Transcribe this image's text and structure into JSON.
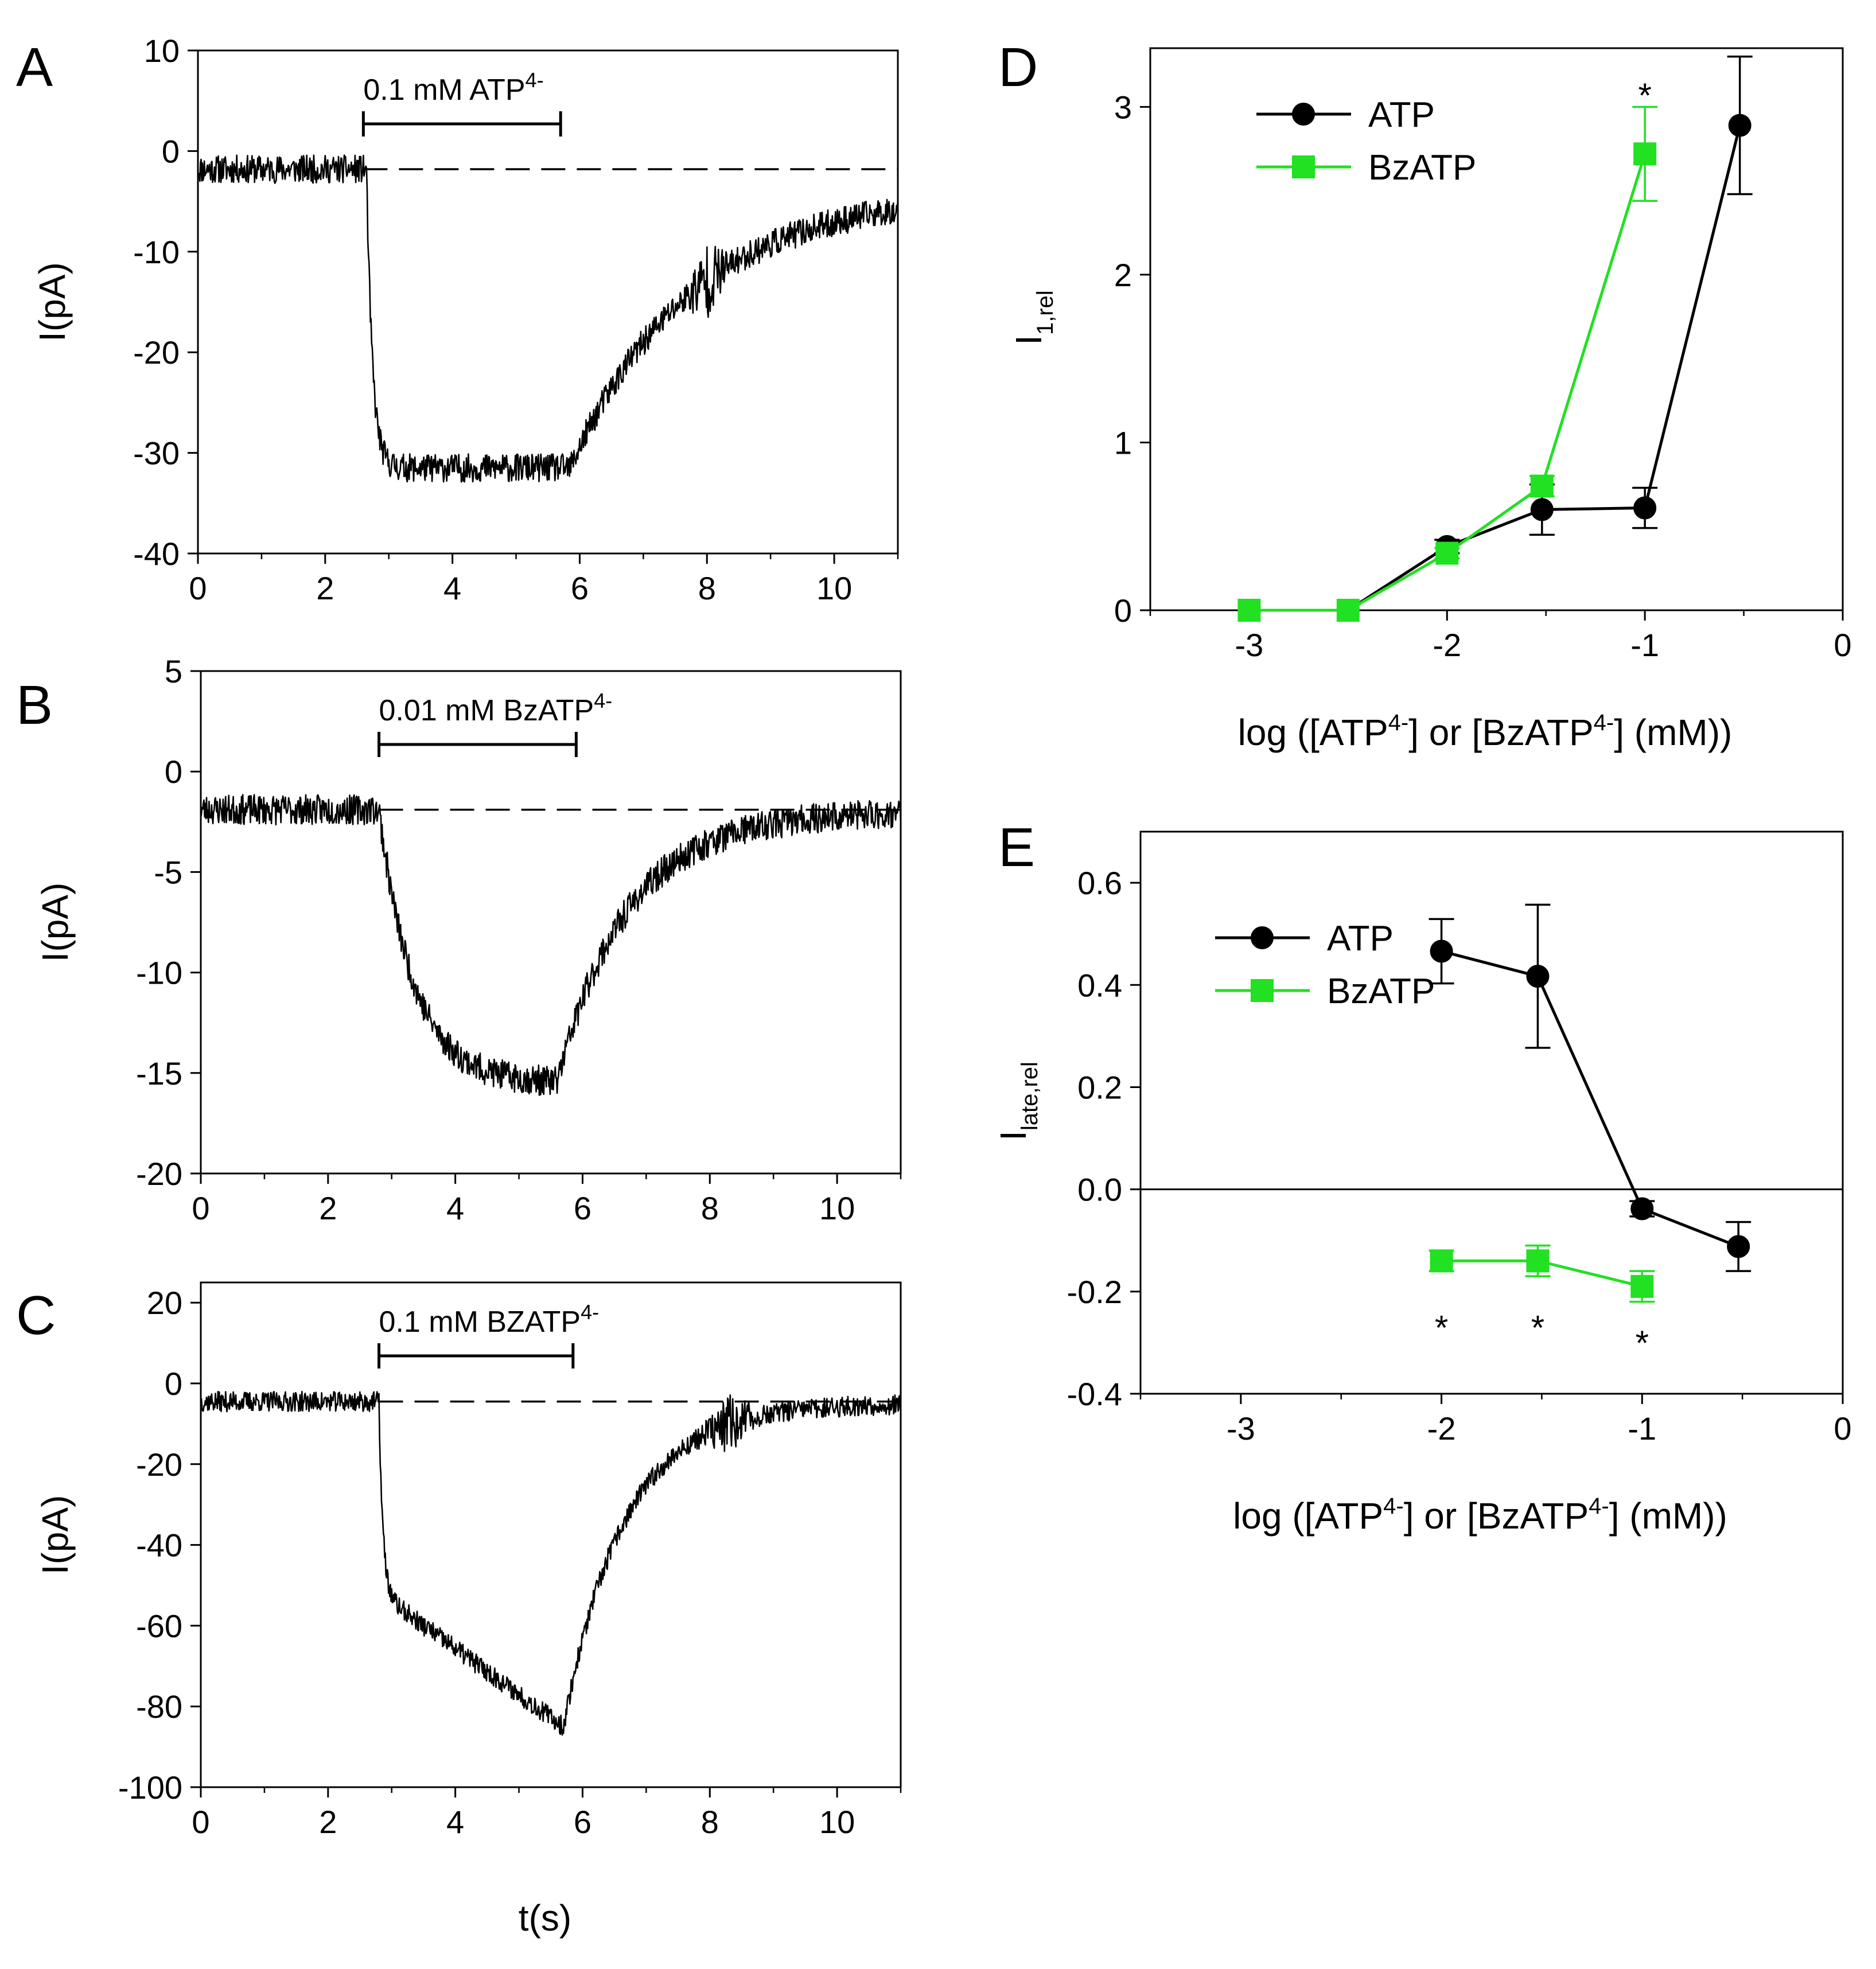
{
  "colors": {
    "ink": "#000000",
    "atp": "#000000",
    "bzatp": "#22e022",
    "background": "#ffffff"
  },
  "chart_data": [
    {
      "panel": "A",
      "type": "line",
      "xlabel": "",
      "ylabel": "I(pA)",
      "xlim": [
        0,
        11
      ],
      "ylim": [
        -40,
        10
      ],
      "xticks": [
        0,
        2,
        4,
        6,
        8,
        10
      ],
      "yticks": [
        10,
        0,
        -10,
        -20,
        -30,
        -40
      ],
      "baseline_pA": -1.8,
      "application": {
        "label_main": "0.1 mM ATP",
        "label_sup": "4-",
        "x_start": 2.6,
        "x_end": 5.7
      },
      "trace_shape": {
        "onset": 2.65,
        "fall_tau": 0.09,
        "peak": -31.5,
        "offset": 5.85,
        "recover_tau": 1.9,
        "final": -4,
        "noise": 1.4,
        "burst_at": 8.0,
        "burst_width": 0.35,
        "burst_amp": 2.5,
        "seed": 11
      }
    },
    {
      "panel": "B",
      "type": "line",
      "xlabel": "",
      "ylabel": "I(pA)",
      "xlim": [
        0,
        11
      ],
      "ylim": [
        -20,
        5
      ],
      "xticks": [
        0,
        2,
        4,
        6,
        8,
        10
      ],
      "yticks": [
        5,
        0,
        -5,
        -10,
        -15,
        -20
      ],
      "baseline_pA": -1.9,
      "application": {
        "label_main": "0.01 mM BzATP",
        "label_sup": "4-",
        "x_start": 2.8,
        "x_end": 5.9
      },
      "trace_shape": {
        "onset": 2.8,
        "fall_tau": 0.55,
        "peak": -15.5,
        "offset": 5.6,
        "recover_tau": 1.1,
        "final": -2.0,
        "noise": 0.75,
        "burst_at": 0,
        "burst_width": 0,
        "burst_amp": 0,
        "seed": 23
      }
    },
    {
      "panel": "C",
      "type": "line",
      "xlabel": "t(s)",
      "ylabel": "I(pA)",
      "xlim": [
        0,
        11
      ],
      "ylim": [
        -100,
        25
      ],
      "xticks": [
        0,
        2,
        4,
        6,
        8,
        10
      ],
      "yticks": [
        20,
        0,
        -20,
        -40,
        -60,
        -80,
        -100
      ],
      "baseline_pA": -4.5,
      "application": {
        "label_main": "0.1 mM BZATP",
        "label_sup": "4-",
        "x_start": 2.8,
        "x_end": 5.85
      },
      "trace_shape": {
        "onset": 2.8,
        "fall_tau": 0.06,
        "peak": -85,
        "plateau_start": -52,
        "offset": 5.7,
        "recover_tau": 0.95,
        "final": -5,
        "noise": 2.5,
        "burst_at": 8.3,
        "burst_width": 0.5,
        "burst_amp": 5,
        "seed": 37
      }
    },
    {
      "panel": "D",
      "type": "line",
      "xlabel": {
        "pre": "log ([ATP",
        "sup1": "4-",
        "mid": "] or [BzATP",
        "sup2": "4-",
        "post": "] (mM))"
      },
      "ylabel": {
        "main": "I",
        "sub": "1,rel"
      },
      "xlim": [
        -3.5,
        0
      ],
      "ylim": [
        0,
        3.35
      ],
      "xticks": [
        -3,
        -2,
        -1,
        0
      ],
      "yticks": [
        0,
        1,
        2,
        3
      ],
      "legend_position": "top-left",
      "series": [
        {
          "name": "ATP",
          "marker": "circle",
          "x": [
            -3,
            -2.5,
            -2,
            -1.52,
            -1,
            -0.52
          ],
          "y": [
            0,
            0,
            0.38,
            0.6,
            0.61,
            2.89
          ],
          "err": [
            0,
            0,
            0.04,
            0.15,
            0.12,
            0.41
          ]
        },
        {
          "name": "BzATP",
          "marker": "square",
          "x": [
            -3,
            -2.5,
            -2,
            -1.52,
            -1
          ],
          "y": [
            0,
            0,
            0.34,
            0.74,
            2.72
          ],
          "err": [
            0,
            0,
            0.03,
            0.06,
            0.28
          ]
        }
      ],
      "annotations": [
        {
          "text": "*",
          "x": -1,
          "y": 3.1
        }
      ]
    },
    {
      "panel": "E",
      "type": "line",
      "xlabel": {
        "pre": "log ([ATP",
        "sup1": "4-",
        "mid": "] or [BzATP",
        "sup2": "4-",
        "post": "] (mM))"
      },
      "ylabel": {
        "main": "I",
        "sub": "late,rel"
      },
      "xlim": [
        -3.5,
        0
      ],
      "ylim": [
        -0.4,
        0.7
      ],
      "xticks": [
        -3,
        -2,
        -1,
        0
      ],
      "yticks": [
        0.6,
        0.4,
        0.2,
        0.0,
        -0.2,
        -0.4
      ],
      "ytick_labels": [
        "0.6",
        "0.4",
        "0.2",
        "0.0",
        "-0.2",
        "-0.4"
      ],
      "zero_line": true,
      "legend_position": "top-left",
      "series": [
        {
          "name": "ATP",
          "marker": "circle",
          "x": [
            -2,
            -1.52,
            -1,
            -0.52
          ],
          "y": [
            0.466,
            0.417,
            -0.038,
            -0.112
          ],
          "err": [
            0.063,
            0.14,
            0.015,
            0.048
          ]
        },
        {
          "name": "BzATP",
          "marker": "square",
          "x": [
            -2,
            -1.52,
            -1
          ],
          "y": [
            -0.14,
            -0.14,
            -0.19
          ],
          "err": [
            0.02,
            0.03,
            0.03
          ]
        }
      ],
      "annotations": [
        {
          "text": "*",
          "x": -2,
          "y": -0.26
        },
        {
          "text": "*",
          "x": -1.52,
          "y": -0.26
        },
        {
          "text": "*",
          "x": -1,
          "y": -0.29
        }
      ]
    }
  ]
}
